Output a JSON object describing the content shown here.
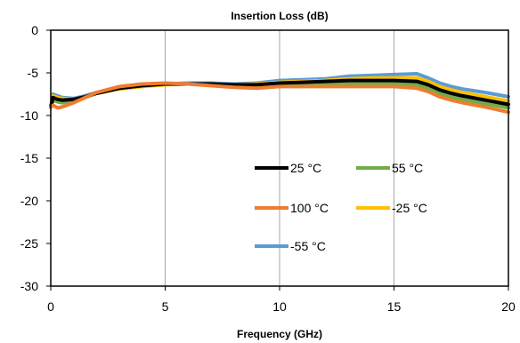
{
  "chart_data": {
    "type": "line",
    "title": "Insertion Loss (dB)",
    "xlabel": "Frequency (GHz)",
    "ylabel": "",
    "xlim": [
      0,
      20
    ],
    "ylim": [
      -30,
      0
    ],
    "xticks": [
      0,
      5,
      10,
      15,
      20
    ],
    "yticks": [
      0,
      -5,
      -10,
      -15,
      -20,
      -25,
      -30
    ],
    "grid": "vertical",
    "legend_position": "center-right",
    "series": [
      {
        "name": "-55 °C",
        "color": "#5B9BD5",
        "x": [
          0,
          0.1,
          0.3,
          0.5,
          1,
          1.5,
          2,
          3,
          4,
          5,
          6,
          7,
          8,
          9,
          10,
          11,
          12,
          13,
          14,
          15,
          16,
          16.5,
          17,
          17.5,
          18,
          19,
          20
        ],
        "y": [
          -9.0,
          -7.5,
          -7.7,
          -7.9,
          -8.0,
          -7.7,
          -7.3,
          -6.8,
          -6.5,
          -6.3,
          -6.2,
          -6.2,
          -6.3,
          -6.2,
          -5.9,
          -5.8,
          -5.7,
          -5.4,
          -5.3,
          -5.2,
          -5.1,
          -5.6,
          -6.2,
          -6.6,
          -6.9,
          -7.3,
          -7.8
        ]
      },
      {
        "name": "-25 °C",
        "color": "#FFC000",
        "x": [
          0,
          0.1,
          0.3,
          0.5,
          1,
          1.5,
          2,
          3,
          4,
          5,
          6,
          7,
          8,
          9,
          10,
          11,
          12,
          13,
          14,
          15,
          16,
          16.5,
          17,
          17.5,
          18,
          19,
          20
        ],
        "y": [
          -9.0,
          -7.7,
          -7.9,
          -8.0,
          -8.1,
          -7.8,
          -7.4,
          -6.9,
          -6.6,
          -6.4,
          -6.3,
          -6.3,
          -6.4,
          -6.3,
          -6.1,
          -6.0,
          -5.9,
          -5.7,
          -5.6,
          -5.6,
          -5.6,
          -6.0,
          -6.6,
          -7.0,
          -7.3,
          -7.8,
          -8.3
        ]
      },
      {
        "name": "55 °C",
        "color": "#70AD47",
        "x": [
          0,
          0.1,
          0.3,
          0.5,
          1,
          1.5,
          2,
          3,
          4,
          5,
          6,
          7,
          8,
          9,
          10,
          11,
          12,
          13,
          14,
          15,
          16,
          16.5,
          17,
          17.5,
          18,
          19,
          20
        ],
        "y": [
          -9.0,
          -8.2,
          -8.4,
          -8.5,
          -8.3,
          -7.9,
          -7.4,
          -6.8,
          -6.5,
          -6.3,
          -6.3,
          -6.4,
          -6.5,
          -6.5,
          -6.3,
          -6.3,
          -6.2,
          -6.2,
          -6.2,
          -6.3,
          -6.4,
          -6.8,
          -7.4,
          -7.8,
          -8.1,
          -8.6,
          -9.1
        ]
      },
      {
        "name": "25 °C",
        "color": "#000000",
        "x": [
          0,
          0.1,
          0.3,
          0.5,
          1,
          1.5,
          2,
          3,
          4,
          5,
          6,
          7,
          8,
          9,
          10,
          11,
          12,
          13,
          14,
          15,
          16,
          16.5,
          17,
          17.5,
          18,
          19,
          20
        ],
        "y": [
          -9.0,
          -7.9,
          -8.1,
          -8.2,
          -8.1,
          -7.8,
          -7.4,
          -6.8,
          -6.5,
          -6.3,
          -6.3,
          -6.3,
          -6.4,
          -6.4,
          -6.2,
          -6.1,
          -6.0,
          -5.9,
          -5.9,
          -5.9,
          -6.0,
          -6.4,
          -7.0,
          -7.4,
          -7.7,
          -8.2,
          -8.7
        ]
      },
      {
        "name": "100 °C",
        "color": "#ED7D31",
        "x": [
          0,
          0.1,
          0.3,
          0.5,
          1,
          1.5,
          2,
          3,
          4,
          5,
          6,
          7,
          8,
          9,
          10,
          11,
          12,
          13,
          14,
          15,
          16,
          16.5,
          17,
          17.5,
          18,
          19,
          20
        ],
        "y": [
          -9.0,
          -8.8,
          -9.1,
          -9.0,
          -8.5,
          -7.9,
          -7.3,
          -6.6,
          -6.3,
          -6.2,
          -6.3,
          -6.5,
          -6.7,
          -6.8,
          -6.6,
          -6.6,
          -6.6,
          -6.6,
          -6.6,
          -6.6,
          -6.8,
          -7.2,
          -7.8,
          -8.2,
          -8.5,
          -9.0,
          -9.6
        ]
      }
    ],
    "legend": [
      {
        "name": "25 °C",
        "color": "#000000"
      },
      {
        "name": "55 °C",
        "color": "#70AD47"
      },
      {
        "name": "100 °C",
        "color": "#ED7D31"
      },
      {
        "name": "-25 °C",
        "color": "#FFC000"
      },
      {
        "name": "-55 °C",
        "color": "#5B9BD5"
      }
    ]
  }
}
